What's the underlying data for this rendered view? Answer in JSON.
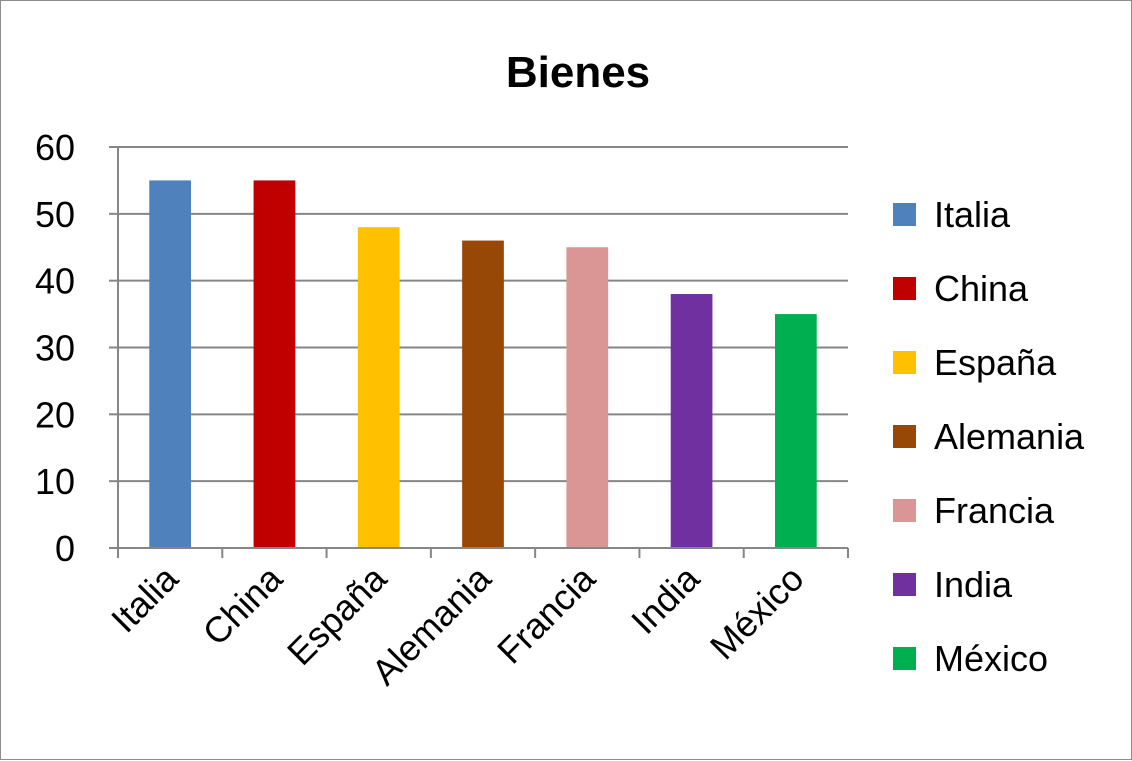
{
  "chart_data": {
    "type": "bar",
    "title": "Bienes",
    "xlabel": "",
    "ylabel": "",
    "categories": [
      "Italia",
      "China",
      "España",
      "Alemania",
      "Francia",
      "India",
      "México"
    ],
    "values": [
      55,
      55,
      48,
      46,
      45,
      38,
      35
    ],
    "colors": [
      "#4F81BD",
      "#C00000",
      "#FFC000",
      "#974706",
      "#D99694",
      "#7030A0",
      "#00B050"
    ],
    "ylim": [
      0,
      60
    ],
    "yticks": [
      0,
      10,
      20,
      30,
      40,
      50,
      60
    ],
    "grid": true,
    "legend": {
      "placement": "right",
      "entries": [
        "Italia",
        "China",
        "España",
        "Alemania",
        "Francia",
        "India",
        "México"
      ]
    }
  }
}
